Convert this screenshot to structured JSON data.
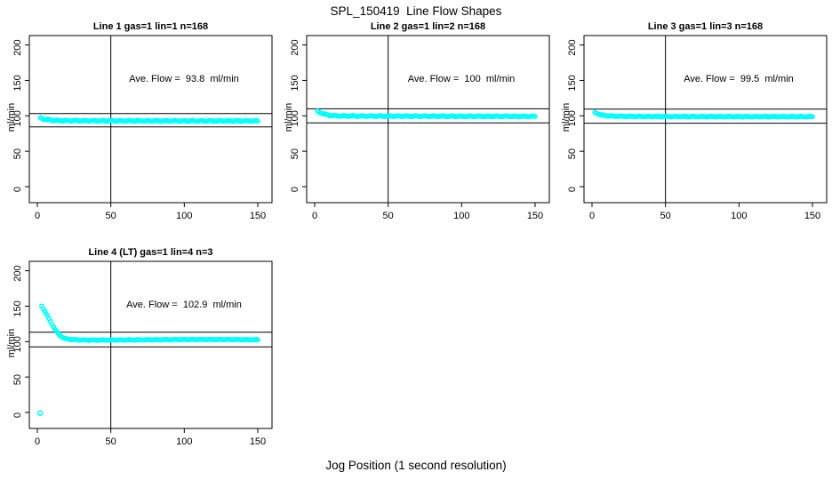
{
  "figure": {
    "title": "SPL_150419  Line Flow Shapes",
    "xlabel": "Jog Position (1 second resolution)"
  },
  "colors": {
    "marker": "#00FFFF",
    "axis": "#000000",
    "background": "#FFFFFF"
  },
  "chart_data": [
    {
      "type": "scatter",
      "title": "Line 1 gas=1 lin=1 n=168",
      "annotation": "Ave. Flow =  93.8  ml/min",
      "ave_flow_ml_min": 93.8,
      "n": 168,
      "ylabel": "ml/min",
      "xticks": [
        0,
        50,
        100,
        150
      ],
      "yticks": [
        0,
        50,
        100,
        150,
        200
      ],
      "xlim": [
        -6,
        160
      ],
      "ylim": [
        -24,
        214
      ],
      "vline_x": 50,
      "hlines_y": [
        103.2,
        84.4
      ],
      "jitter": 0.9,
      "keypoints": [
        [
          2,
          97
        ],
        [
          3,
          96.3
        ],
        [
          4,
          95.7
        ],
        [
          6,
          94.8
        ],
        [
          8,
          94.2
        ],
        [
          10,
          93.8
        ],
        [
          14,
          93.4
        ],
        [
          20,
          93.1
        ],
        [
          30,
          93
        ],
        [
          50,
          92.9
        ],
        [
          80,
          92.9
        ],
        [
          110,
          92.8
        ],
        [
          150,
          92.8
        ]
      ],
      "outlier_points": []
    },
    {
      "type": "scatter",
      "title": "Line 2 gas=1 lin=2 n=168",
      "annotation": "Ave. Flow =  100  ml/min",
      "ave_flow_ml_min": 100,
      "n": 168,
      "ylabel": "ml/min",
      "xticks": [
        0,
        50,
        100,
        150
      ],
      "yticks": [
        0,
        50,
        100,
        150,
        200
      ],
      "xlim": [
        -6,
        160
      ],
      "ylim": [
        -24,
        214
      ],
      "vline_x": 50,
      "hlines_y": [
        110,
        90
      ],
      "jitter": 0.8,
      "keypoints": [
        [
          2,
          106.5
        ],
        [
          3,
          105.5
        ],
        [
          4,
          104.5
        ],
        [
          5,
          103.5
        ],
        [
          6,
          102.8
        ],
        [
          8,
          101.6
        ],
        [
          10,
          100.8
        ],
        [
          13,
          100.2
        ],
        [
          17,
          99.9
        ],
        [
          25,
          99.7
        ],
        [
          40,
          99.6
        ],
        [
          60,
          99.5
        ],
        [
          80,
          99.4
        ],
        [
          100,
          99.3
        ],
        [
          120,
          99.3
        ],
        [
          150,
          99.2
        ]
      ],
      "outlier_points": []
    },
    {
      "type": "scatter",
      "title": "Line 3 gas=1 lin=3 n=168",
      "annotation": "Ave. Flow =  99.5  ml/min",
      "ave_flow_ml_min": 99.5,
      "n": 168,
      "ylabel": "ml/min",
      "xticks": [
        0,
        50,
        100,
        150
      ],
      "yticks": [
        0,
        50,
        100,
        150,
        200
      ],
      "xlim": [
        -6,
        160
      ],
      "ylim": [
        -24,
        214
      ],
      "vline_x": 50,
      "hlines_y": [
        109.5,
        89.6
      ],
      "jitter": 0.7,
      "keypoints": [
        [
          2,
          104.5
        ],
        [
          3,
          103.6
        ],
        [
          4,
          102.8
        ],
        [
          6,
          101.5
        ],
        [
          8,
          100.6
        ],
        [
          10,
          100.1
        ],
        [
          14,
          99.6
        ],
        [
          20,
          99.3
        ],
        [
          35,
          99.1
        ],
        [
          60,
          99
        ],
        [
          90,
          98.9
        ],
        [
          120,
          98.9
        ],
        [
          150,
          98.8
        ]
      ],
      "outlier_points": []
    },
    {
      "type": "scatter",
      "title": "Line 4 (LT) gas=1 lin=4 n=3",
      "annotation": "Ave. Flow =  102.9  ml/min",
      "ave_flow_ml_min": 102.9,
      "n": 3,
      "ylabel": "ml/min",
      "xticks": [
        0,
        50,
        100,
        150
      ],
      "yticks": [
        0,
        50,
        100,
        150,
        200
      ],
      "xlim": [
        -6,
        160
      ],
      "ylim": [
        -24,
        214
      ],
      "vline_x": 50,
      "hlines_y": [
        113.2,
        92.6
      ],
      "jitter": 0.5,
      "keypoints": [
        [
          3,
          150
        ],
        [
          4,
          146.5
        ],
        [
          5,
          143
        ],
        [
          6,
          139.5
        ],
        [
          7,
          135.8
        ],
        [
          8,
          132
        ],
        [
          9,
          128.2
        ],
        [
          10,
          124.5
        ],
        [
          11,
          120.8
        ],
        [
          12,
          117.5
        ],
        [
          13,
          114.5
        ],
        [
          14,
          111.8
        ],
        [
          15,
          109.5
        ],
        [
          16,
          107.6
        ],
        [
          17,
          106.2
        ],
        [
          18,
          105.2
        ],
        [
          19,
          104.4
        ],
        [
          20,
          103.8
        ],
        [
          23,
          103
        ],
        [
          27,
          102.5
        ],
        [
          35,
          102.1
        ],
        [
          50,
          102.2
        ],
        [
          70,
          102.5
        ],
        [
          90,
          102.8
        ],
        [
          110,
          103
        ],
        [
          130,
          102.9
        ],
        [
          150,
          102.6
        ]
      ],
      "outlier_points": [
        [
          2,
          -1
        ]
      ]
    }
  ]
}
